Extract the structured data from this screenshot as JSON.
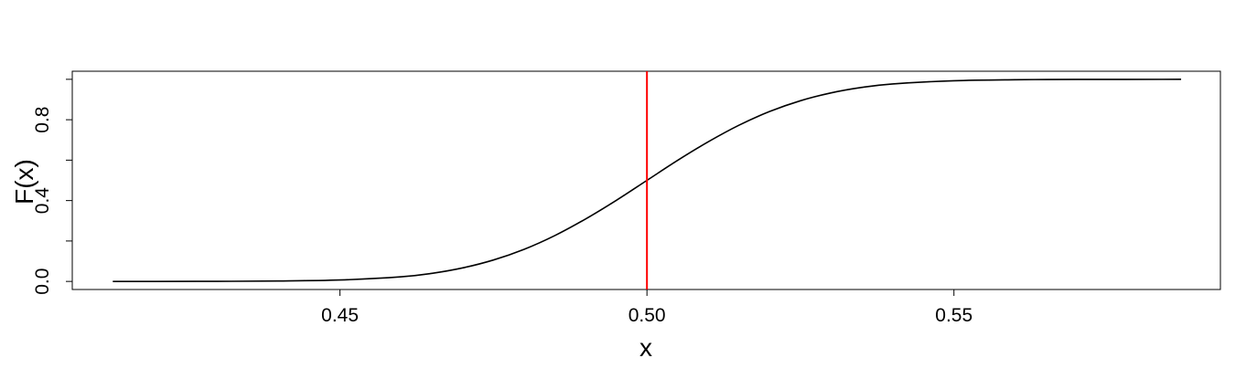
{
  "chart_data": {
    "type": "line",
    "title": "",
    "xlabel": "x",
    "ylabel": "F(x)",
    "xlim": [
      0.4064,
      0.5934
    ],
    "ylim": [
      -0.04,
      1.04
    ],
    "x_ticks": [
      0.45,
      0.5,
      0.55
    ],
    "x_tick_labels": [
      "0.45",
      "0.50",
      "0.55"
    ],
    "y_ticks": [
      0.0,
      0.2,
      0.4,
      0.6,
      0.8,
      1.0
    ],
    "y_tick_labels": [
      "0.0",
      "",
      "0.4",
      "",
      "0.8",
      ""
    ],
    "grid": false,
    "legend": "none",
    "series": [
      {
        "color": "#000000",
        "x": [
          0.413,
          0.42,
          0.43,
          0.44,
          0.45,
          0.46,
          0.465,
          0.47,
          0.475,
          0.48,
          0.485,
          0.49,
          0.495,
          0.5,
          0.505,
          0.51,
          0.515,
          0.52,
          0.525,
          0.53,
          0.535,
          0.54,
          0.55,
          0.56,
          0.57,
          0.587
        ],
        "y": [
          0.0,
          0.0,
          0.0005,
          0.002,
          0.007,
          0.023,
          0.04,
          0.067,
          0.106,
          0.159,
          0.227,
          0.309,
          0.401,
          0.5,
          0.599,
          0.691,
          0.773,
          0.841,
          0.894,
          0.933,
          0.96,
          0.977,
          0.993,
          0.998,
          0.9995,
          1.0
        ]
      }
    ],
    "vline": {
      "x": 0.5,
      "color": "#ff0000"
    }
  }
}
